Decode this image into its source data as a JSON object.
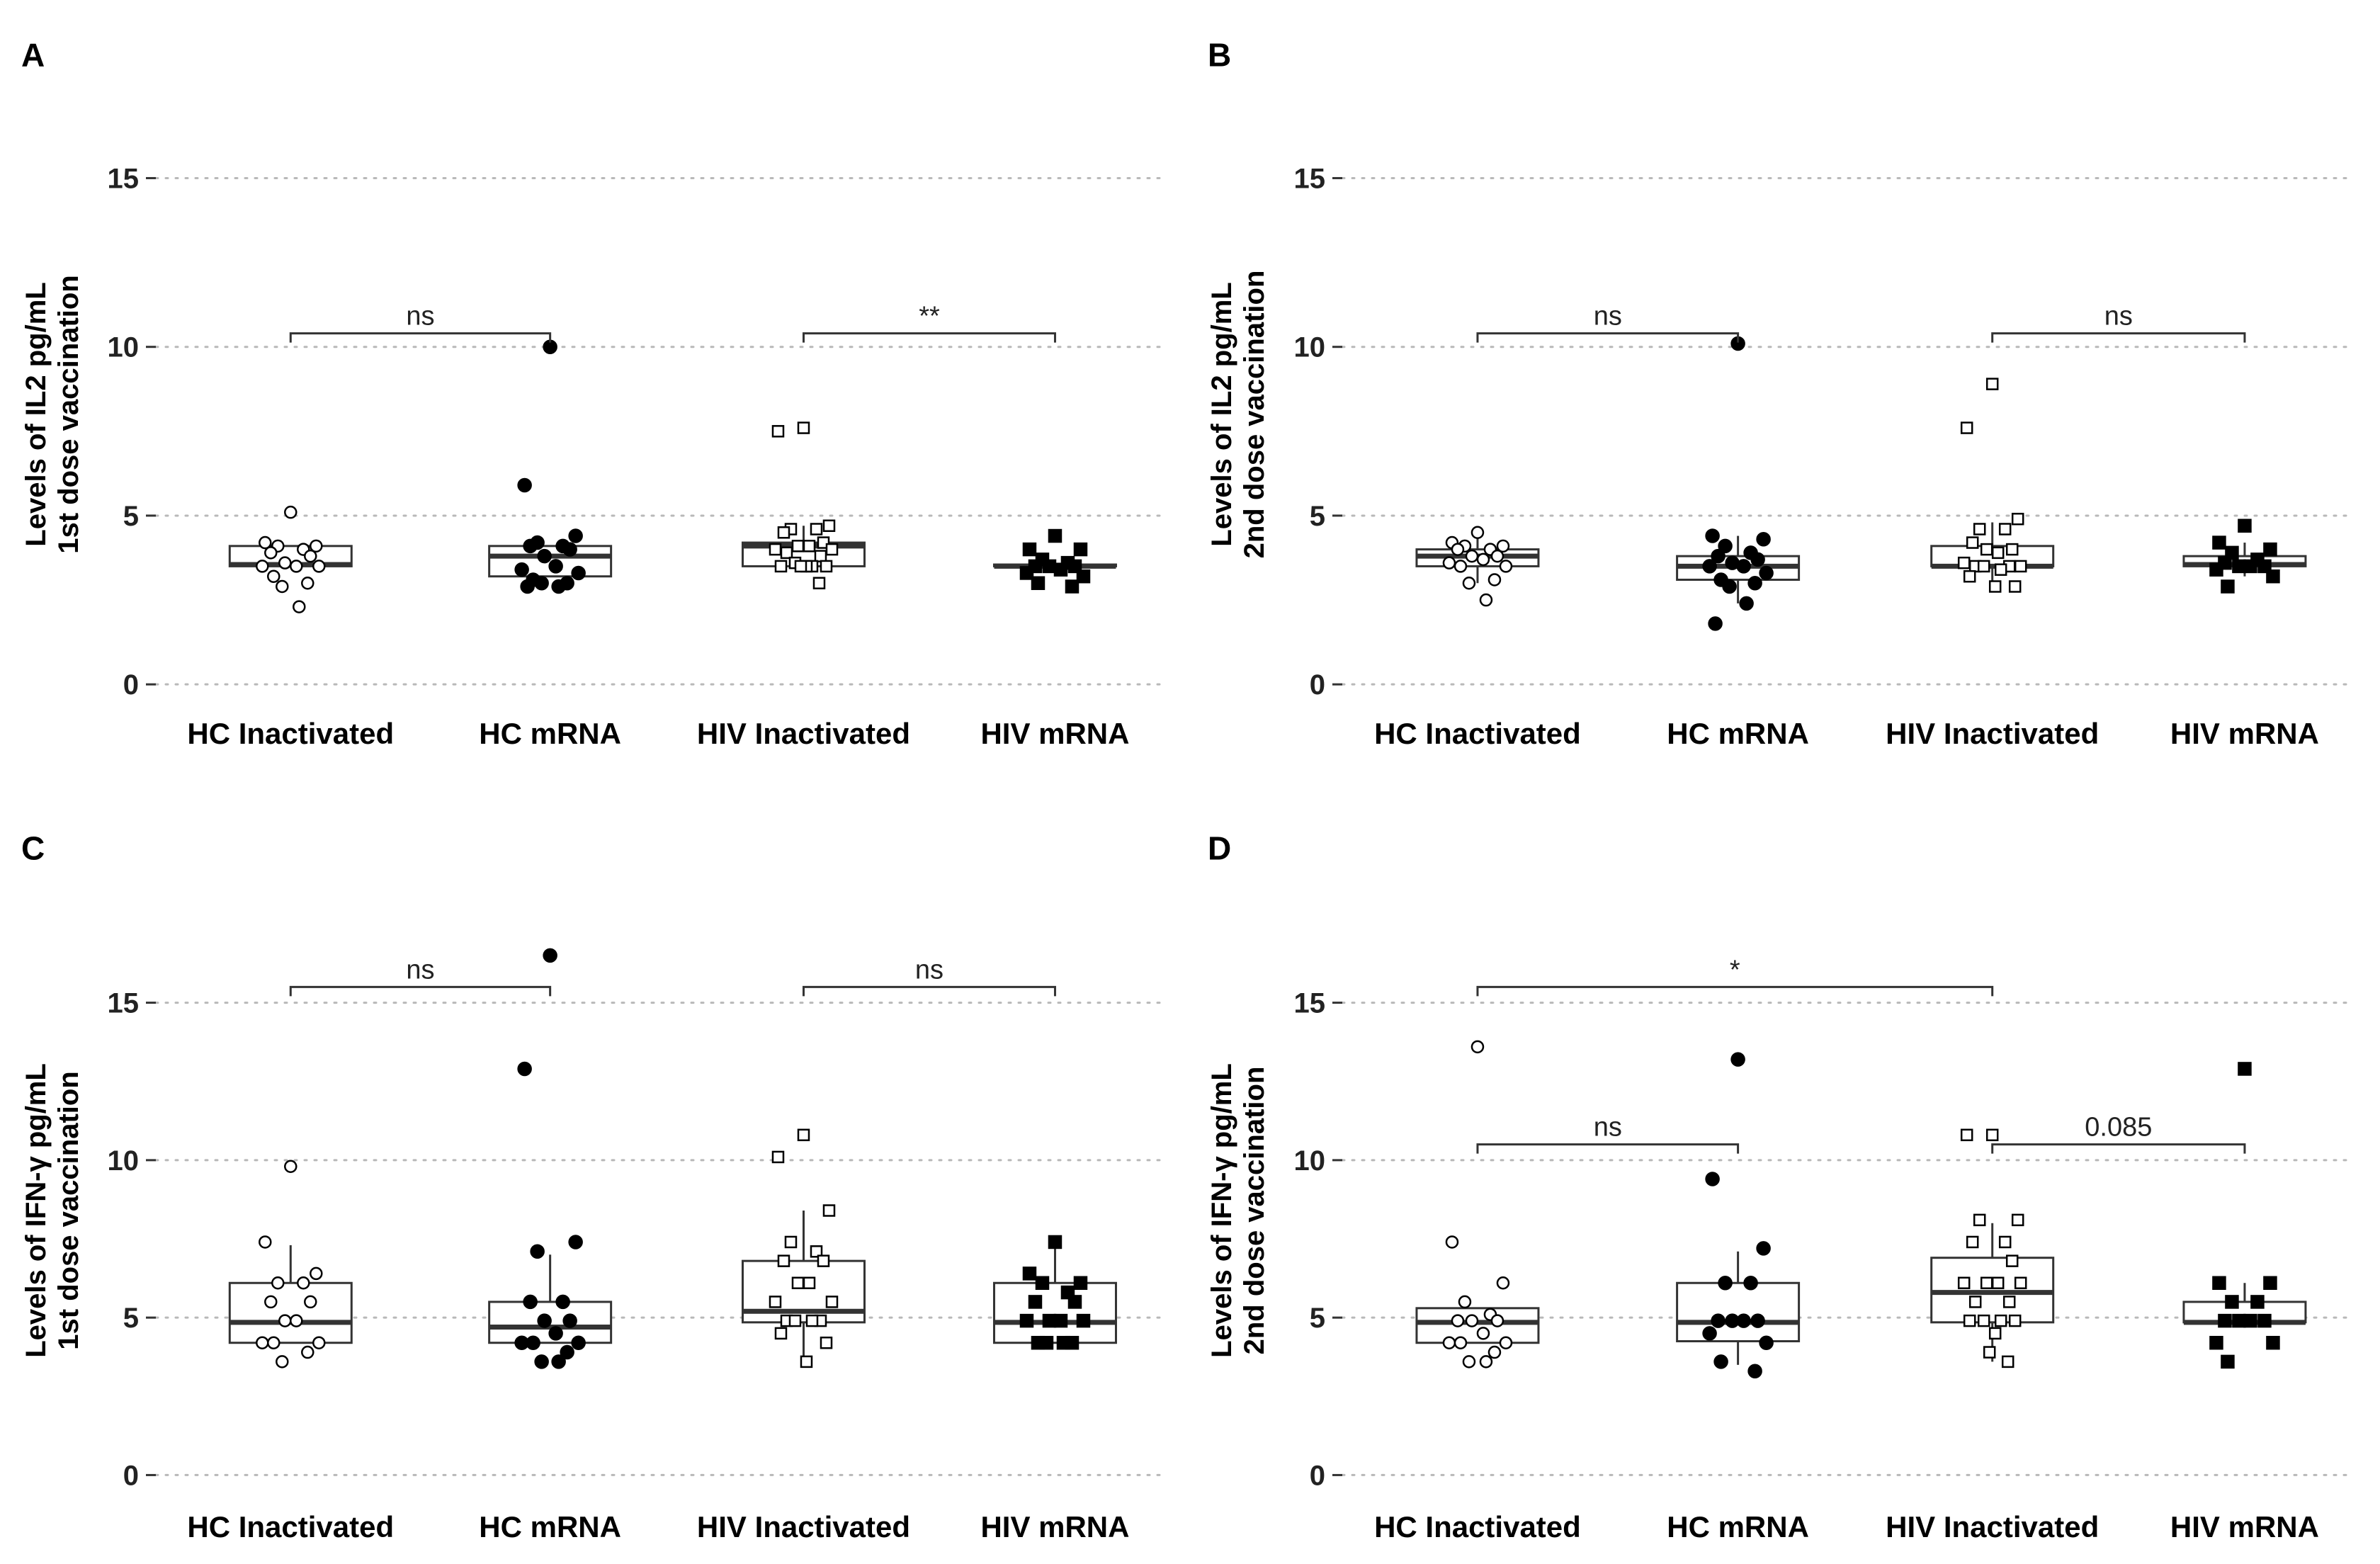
{
  "colors": {
    "ink": "#000000",
    "box_stroke": "#333333",
    "grid": "#b8b8b8"
  },
  "chart_data": [
    {
      "id": "A",
      "type": "box",
      "panel_label": "A",
      "ylabel_line1": "Levels of IL2 pg/mL",
      "ylabel_line2": "1st dose vaccination",
      "ylim": [
        -0.5,
        16.5
      ],
      "yticks": [
        0,
        5,
        10,
        15
      ],
      "grid": "horizontal-dotted",
      "categories": [
        "HC Inactivated",
        "HC mRNA",
        "HIV Inactivated",
        "HIV mRNA"
      ],
      "groups": [
        {
          "name": "HC Inactivated",
          "marker": "circle-open",
          "q1": 3.5,
          "median": 3.55,
          "q3": 4.1,
          "whisker_low": 3.5,
          "whisker_high": 4.1,
          "points": [
            5.1,
            4.2,
            4.1,
            4.1,
            4.0,
            3.9,
            3.8,
            3.6,
            3.5,
            3.5,
            3.5,
            3.2,
            3.0,
            2.9,
            2.3
          ]
        },
        {
          "name": "HC mRNA",
          "marker": "circle-filled",
          "q1": 3.2,
          "median": 3.8,
          "q3": 4.1,
          "whisker_low": 3.2,
          "whisker_high": 4.1,
          "points": [
            10.0,
            5.9,
            4.4,
            4.2,
            4.1,
            4.1,
            4.0,
            3.8,
            3.5,
            3.4,
            3.3,
            3.1,
            3.0,
            3.0,
            2.9,
            2.9
          ]
        },
        {
          "name": "HIV Inactivated",
          "marker": "square-open",
          "q1": 3.5,
          "median": 4.1,
          "q3": 4.2,
          "whisker_low": 3.5,
          "whisker_high": 4.7,
          "points": [
            7.6,
            7.5,
            4.7,
            4.6,
            4.6,
            4.5,
            4.2,
            4.1,
            4.1,
            4.0,
            4.0,
            3.9,
            3.8,
            3.6,
            3.5,
            3.5,
            3.5,
            3.5,
            3.5,
            3.0
          ]
        },
        {
          "name": "HIV mRNA",
          "marker": "square-filled",
          "q1": 3.5,
          "median": 3.5,
          "q3": 3.55,
          "whisker_low": 3.5,
          "whisker_high": 3.55,
          "points": [
            4.4,
            4.0,
            4.0,
            3.7,
            3.6,
            3.5,
            3.5,
            3.5,
            3.4,
            3.3,
            3.2,
            3.0,
            2.9
          ]
        }
      ],
      "comparisons": [
        {
          "from": 0,
          "to": 1,
          "y": 10.4,
          "label": "ns"
        },
        {
          "from": 2,
          "to": 3,
          "y": 10.4,
          "label": "**"
        }
      ]
    },
    {
      "id": "B",
      "type": "box",
      "panel_label": "B",
      "ylabel_line1": "Levels of IL2 pg/mL",
      "ylabel_line2": "2nd dose vaccination",
      "ylim": [
        -0.5,
        16.5
      ],
      "yticks": [
        0,
        5,
        10,
        15
      ],
      "grid": "horizontal-dotted",
      "categories": [
        "HC Inactivated",
        "HC mRNA",
        "HIV Inactivated",
        "HIV mRNA"
      ],
      "groups": [
        {
          "name": "HC Inactivated",
          "marker": "circle-open",
          "q1": 3.5,
          "median": 3.8,
          "q3": 4.0,
          "whisker_low": 3.0,
          "whisker_high": 4.6,
          "points": [
            4.5,
            4.2,
            4.1,
            4.1,
            4.0,
            4.0,
            3.8,
            3.8,
            3.7,
            3.6,
            3.5,
            3.5,
            3.1,
            3.0,
            2.5
          ]
        },
        {
          "name": "HC mRNA",
          "marker": "circle-filled",
          "q1": 3.1,
          "median": 3.5,
          "q3": 3.8,
          "whisker_low": 2.4,
          "whisker_high": 4.4,
          "points": [
            10.1,
            4.4,
            4.3,
            4.1,
            3.9,
            3.8,
            3.7,
            3.6,
            3.5,
            3.5,
            3.3,
            3.1,
            3.0,
            2.9,
            2.4,
            1.8
          ]
        },
        {
          "name": "HIV Inactivated",
          "marker": "square-open",
          "q1": 3.5,
          "median": 3.5,
          "q3": 4.1,
          "whisker_low": 2.9,
          "whisker_high": 4.8,
          "points": [
            8.9,
            7.6,
            4.9,
            4.6,
            4.6,
            4.2,
            4.0,
            4.0,
            3.9,
            3.6,
            3.5,
            3.5,
            3.5,
            3.5,
            3.4,
            3.2,
            2.9,
            2.9
          ]
        },
        {
          "name": "HIV mRNA",
          "marker": "square-filled",
          "q1": 3.5,
          "median": 3.55,
          "q3": 3.8,
          "whisker_low": 3.2,
          "whisker_high": 4.2,
          "points": [
            4.7,
            4.2,
            4.0,
            3.9,
            3.7,
            3.6,
            3.5,
            3.5,
            3.5,
            3.4,
            3.2,
            2.9
          ]
        }
      ],
      "comparisons": [
        {
          "from": 0,
          "to": 1,
          "y": 10.4,
          "label": "ns"
        },
        {
          "from": 2,
          "to": 3,
          "y": 10.4,
          "label": "ns"
        }
      ]
    },
    {
      "id": "C",
      "type": "box",
      "panel_label": "C",
      "ylabel_line1": "Levels of IFN-γ pg/mL",
      "ylabel_line2": "1st dose vaccination",
      "ylim": [
        -0.8,
        17.6
      ],
      "yticks": [
        0,
        5,
        10,
        15
      ],
      "grid": "horizontal-dotted",
      "categories": [
        "HC Inactivated",
        "HC mRNA",
        "HIV Inactivated",
        "HIV mRNA"
      ],
      "groups": [
        {
          "name": "HC Inactivated",
          "marker": "circle-open",
          "q1": 4.2,
          "median": 4.85,
          "q3": 6.1,
          "whisker_low": 4.2,
          "whisker_high": 7.3,
          "points": [
            9.8,
            7.4,
            6.4,
            6.1,
            6.1,
            5.5,
            5.5,
            4.9,
            4.9,
            4.2,
            4.2,
            4.2,
            3.9,
            3.6
          ]
        },
        {
          "name": "HC mRNA",
          "marker": "circle-filled",
          "q1": 4.2,
          "median": 4.7,
          "q3": 5.5,
          "whisker_low": 4.2,
          "whisker_high": 7.0,
          "points": [
            16.5,
            12.9,
            7.4,
            7.1,
            5.5,
            5.5,
            4.9,
            4.9,
            4.5,
            4.2,
            4.2,
            4.2,
            3.9,
            3.6,
            3.6
          ]
        },
        {
          "name": "HIV Inactivated",
          "marker": "square-open",
          "q1": 4.85,
          "median": 5.2,
          "q3": 6.8,
          "whisker_low": 3.6,
          "whisker_high": 8.4,
          "points": [
            10.8,
            10.1,
            8.4,
            7.4,
            7.1,
            6.8,
            6.8,
            6.1,
            6.1,
            5.5,
            5.5,
            4.9,
            4.9,
            4.9,
            4.9,
            4.5,
            4.2,
            3.6
          ]
        },
        {
          "name": "HIV mRNA",
          "marker": "square-filled",
          "q1": 4.2,
          "median": 4.85,
          "q3": 6.1,
          "whisker_low": 4.2,
          "whisker_high": 7.4,
          "points": [
            7.4,
            6.4,
            6.1,
            6.1,
            5.8,
            5.5,
            5.5,
            4.9,
            4.9,
            4.9,
            4.9,
            4.2,
            4.2,
            4.2,
            4.2
          ]
        }
      ],
      "comparisons": [
        {
          "from": 0,
          "to": 1,
          "y": 15.5,
          "label": "ns"
        },
        {
          "from": 2,
          "to": 3,
          "y": 15.5,
          "label": "ns"
        }
      ]
    },
    {
      "id": "D",
      "type": "box",
      "panel_label": "D",
      "ylabel_line1": "Levels of IFN-γ pg/mL",
      "ylabel_line2": "2nd dose vaccination",
      "ylim": [
        -0.8,
        17.6
      ],
      "yticks": [
        0,
        5,
        10,
        15
      ],
      "grid": "horizontal-dotted",
      "categories": [
        "HC Inactivated",
        "HC mRNA",
        "HIV Inactivated",
        "HIV mRNA"
      ],
      "groups": [
        {
          "name": "HC Inactivated",
          "marker": "circle-open",
          "q1": 4.2,
          "median": 4.85,
          "q3": 5.3,
          "whisker_low": 4.2,
          "whisker_high": 5.3,
          "points": [
            13.6,
            7.4,
            6.1,
            5.5,
            5.1,
            4.9,
            4.9,
            4.9,
            4.5,
            4.2,
            4.2,
            4.2,
            3.9,
            3.6,
            3.6
          ]
        },
        {
          "name": "HC mRNA",
          "marker": "circle-filled",
          "q1": 4.25,
          "median": 4.85,
          "q3": 6.1,
          "whisker_low": 3.5,
          "whisker_high": 7.1,
          "points": [
            13.2,
            9.4,
            7.2,
            6.1,
            6.1,
            4.9,
            4.9,
            4.9,
            4.9,
            4.5,
            4.2,
            3.6,
            3.3
          ]
        },
        {
          "name": "HIV Inactivated",
          "marker": "square-open",
          "q1": 4.85,
          "median": 5.8,
          "q3": 6.9,
          "whisker_low": 3.6,
          "whisker_high": 8.0,
          "points": [
            10.8,
            10.8,
            8.1,
            8.1,
            7.4,
            7.4,
            6.8,
            6.1,
            6.1,
            6.1,
            6.1,
            5.5,
            5.5,
            4.9,
            4.9,
            4.9,
            4.9,
            4.5,
            3.9,
            3.6
          ]
        },
        {
          "name": "HIV mRNA",
          "marker": "square-filled",
          "q1": 4.85,
          "median": 4.85,
          "q3": 5.5,
          "whisker_low": 4.85,
          "whisker_high": 6.1,
          "points": [
            12.9,
            6.1,
            6.1,
            5.5,
            5.5,
            4.9,
            4.9,
            4.9,
            4.9,
            4.2,
            4.2,
            3.6
          ]
        }
      ],
      "comparisons": [
        {
          "from": 0,
          "to": 1,
          "y": 10.5,
          "label": "ns"
        },
        {
          "from": 2,
          "to": 3,
          "y": 10.5,
          "label": "0.085"
        },
        {
          "from": 0,
          "to": 2,
          "y": 15.5,
          "label": "*"
        }
      ]
    }
  ]
}
